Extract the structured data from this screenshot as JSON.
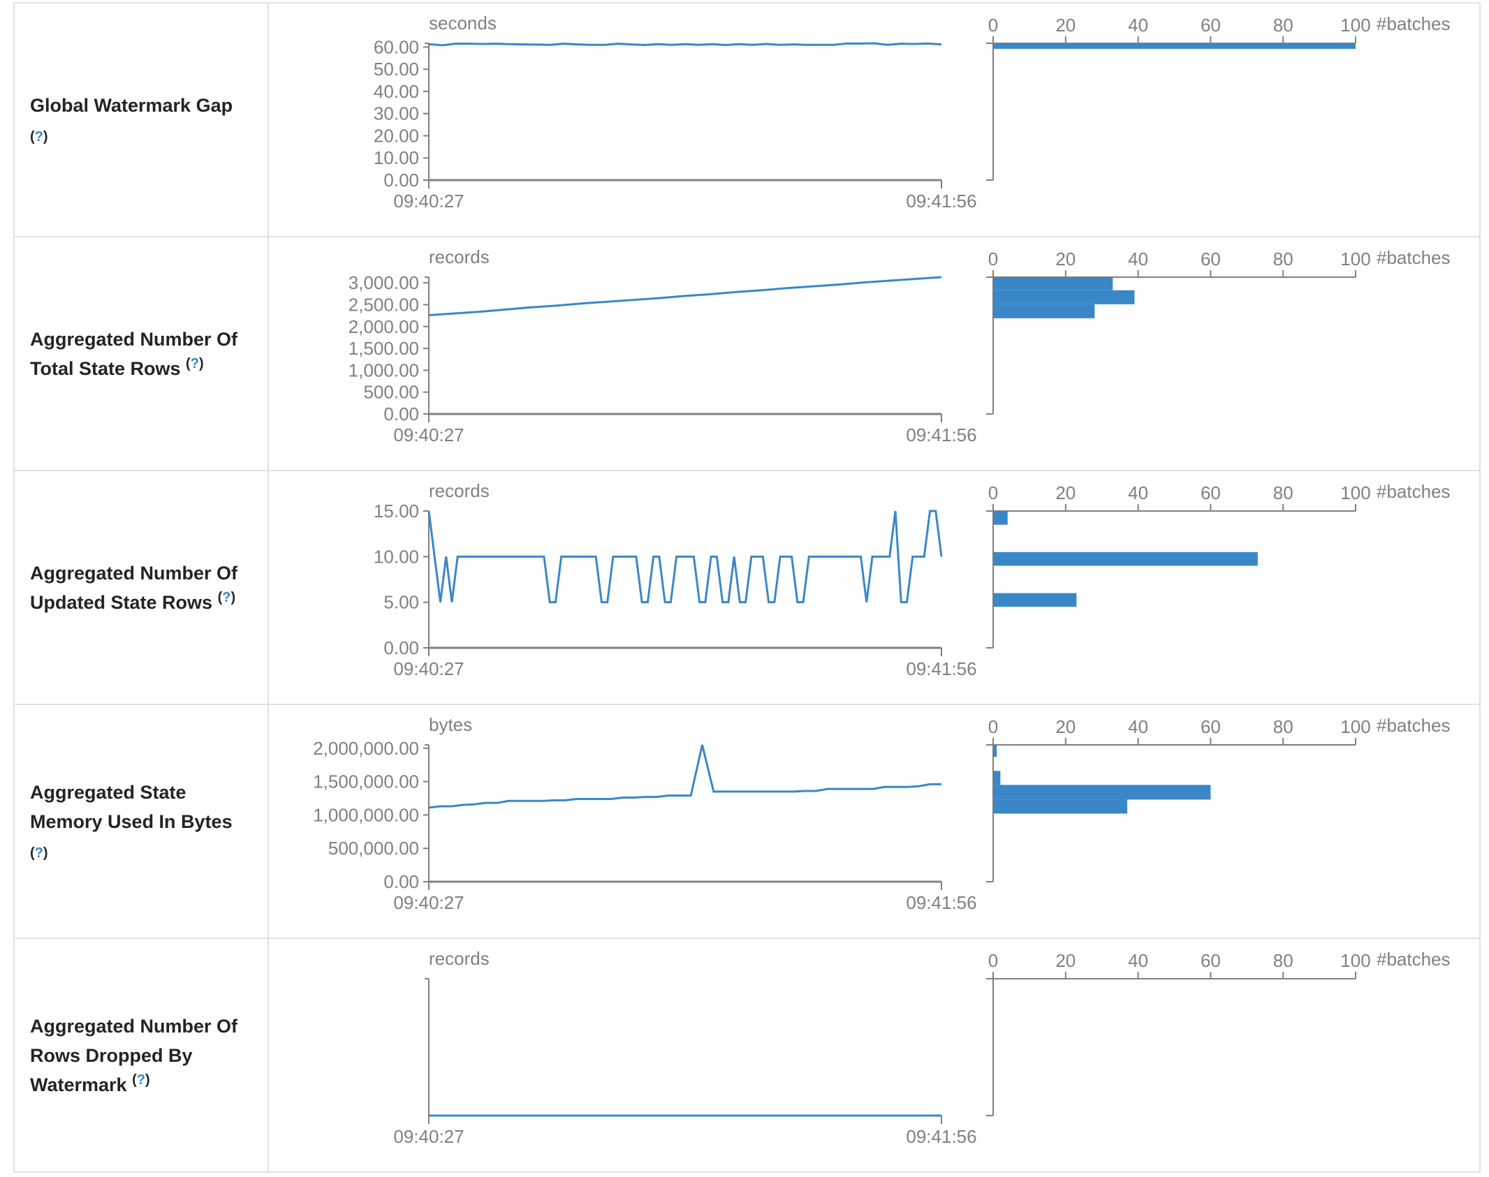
{
  "colors": {
    "line": "#3a87c8",
    "bar": "#3a87c8",
    "axis": "#808080",
    "border": "#dee2e6",
    "help": "#3a87c8"
  },
  "help_mark": "?",
  "hist_ticks": [
    "0",
    "20",
    "40",
    "60",
    "80",
    "100"
  ],
  "hist_unit": "#batches",
  "hist_max": 100,
  "x_labels": [
    "09:40:27",
    "09:41:56"
  ],
  "chart_data": [
    {
      "type": "line+histogram",
      "title_lines": [
        "Global Watermark Gap"
      ],
      "help_newline": true,
      "unit": "seconds",
      "y_ticks": [
        {
          "v": 0,
          "label": "0.00"
        },
        {
          "v": 10,
          "label": "10.00"
        },
        {
          "v": 20,
          "label": "20.00"
        },
        {
          "v": 30,
          "label": "30.00"
        },
        {
          "v": 40,
          "label": "40.00"
        },
        {
          "v": 50,
          "label": "50.00"
        },
        {
          "v": 60,
          "label": "60.00"
        }
      ],
      "values": [
        61.3,
        60.8,
        61.5,
        61.5,
        61.4,
        61.5,
        61.3,
        61.2,
        61.1,
        61.0,
        61.5,
        61.2,
        61.0,
        61.0,
        61.5,
        61.2,
        60.9,
        61.3,
        61.0,
        61.3,
        61.0,
        61.3,
        60.9,
        61.3,
        61.0,
        61.4,
        61.0,
        61.2,
        61.0,
        61.0,
        61.0,
        61.6,
        61.6,
        61.7,
        61.0,
        61.5,
        61.4,
        61.6,
        61.2
      ],
      "histogram": [
        {
          "lo": 59.2,
          "hi": 61.7,
          "count": 100
        }
      ]
    },
    {
      "type": "line+histogram",
      "title_lines": [
        "Aggregated Number Of",
        "Total State Rows"
      ],
      "help_newline": false,
      "unit": "records",
      "y_ticks": [
        {
          "v": 0,
          "label": "0.00"
        },
        {
          "v": 500,
          "label": "500.00"
        },
        {
          "v": 1000,
          "label": "1,000.00"
        },
        {
          "v": 1500,
          "label": "1,500.00"
        },
        {
          "v": 2000,
          "label": "2,000.00"
        },
        {
          "v": 2500,
          "label": "2,500.00"
        },
        {
          "v": 3000,
          "label": "3,000.00"
        }
      ],
      "values": [
        2260,
        2300,
        2340,
        2390,
        2440,
        2480,
        2530,
        2570,
        2610,
        2650,
        2700,
        2740,
        2790,
        2830,
        2880,
        2920,
        2960,
        3010,
        3050,
        3090,
        3130
      ],
      "histogram": [
        {
          "lo": 2830,
          "hi": 3130,
          "count": 33
        },
        {
          "lo": 2510,
          "hi": 2830,
          "count": 39
        },
        {
          "lo": 2190,
          "hi": 2510,
          "count": 28
        }
      ]
    },
    {
      "type": "line+histogram",
      "title_lines": [
        "Aggregated Number Of",
        "Updated State Rows"
      ],
      "help_newline": false,
      "unit": "records",
      "y_ticks": [
        {
          "v": 0,
          "label": "0.00"
        },
        {
          "v": 5,
          "label": "5.00"
        },
        {
          "v": 10,
          "label": "10.00"
        },
        {
          "v": 15,
          "label": "15.00"
        }
      ],
      "values": [
        15,
        10,
        5,
        10,
        5,
        10,
        10,
        10,
        10,
        10,
        10,
        10,
        10,
        10,
        10,
        10,
        10,
        10,
        10,
        10,
        10,
        5,
        5,
        10,
        10,
        10,
        10,
        10,
        10,
        10,
        5,
        5,
        10,
        10,
        10,
        10,
        10,
        5,
        5,
        10,
        10,
        5,
        5,
        10,
        10,
        10,
        10,
        5,
        5,
        10,
        10,
        5,
        5,
        10,
        5,
        5,
        10,
        10,
        10,
        5,
        5,
        10,
        10,
        10,
        5,
        5,
        10,
        10,
        10,
        10,
        10,
        10,
        10,
        10,
        10,
        10,
        5,
        10,
        10,
        10,
        10,
        15,
        5,
        5,
        10,
        10,
        10,
        15,
        15,
        10
      ],
      "histogram": [
        {
          "lo": 13.5,
          "hi": 15,
          "count": 4
        },
        {
          "lo": 9,
          "hi": 10.5,
          "count": 73
        },
        {
          "lo": 4.5,
          "hi": 6,
          "count": 23
        }
      ]
    },
    {
      "type": "line+histogram",
      "title_lines": [
        "Aggregated State",
        "Memory Used In Bytes"
      ],
      "help_newline": true,
      "unit": "bytes",
      "y_ticks": [
        {
          "v": 0,
          "label": "0.00"
        },
        {
          "v": 500000,
          "label": "500,000.00"
        },
        {
          "v": 1000000,
          "label": "1,000,000.00"
        },
        {
          "v": 1500000,
          "label": "1,500,000.00"
        },
        {
          "v": 2000000,
          "label": "2,000,000.00"
        }
      ],
      "values": [
        1110000,
        1130000,
        1130000,
        1150000,
        1160000,
        1180000,
        1180000,
        1210000,
        1210000,
        1210000,
        1210000,
        1220000,
        1220000,
        1240000,
        1240000,
        1240000,
        1240000,
        1260000,
        1260000,
        1270000,
        1270000,
        1290000,
        1290000,
        1290000,
        2050000,
        1350000,
        1350000,
        1350000,
        1350000,
        1350000,
        1350000,
        1350000,
        1350000,
        1360000,
        1360000,
        1390000,
        1390000,
        1390000,
        1390000,
        1390000,
        1420000,
        1420000,
        1420000,
        1430000,
        1460000,
        1460000
      ],
      "histogram": [
        {
          "lo": 1870000,
          "hi": 2050000,
          "count": 1
        },
        {
          "lo": 1450000,
          "hi": 1660000,
          "count": 2
        },
        {
          "lo": 1230000,
          "hi": 1450000,
          "count": 60
        },
        {
          "lo": 1020000,
          "hi": 1230000,
          "count": 37
        }
      ]
    },
    {
      "type": "line+histogram",
      "title_lines": [
        "Aggregated Number Of",
        "Rows Dropped By",
        "Watermark"
      ],
      "help_newline": false,
      "unit": "records",
      "y_ticks": [],
      "values": [
        0,
        0,
        0,
        0,
        0,
        0,
        0,
        0,
        0,
        0
      ],
      "histogram": []
    }
  ]
}
